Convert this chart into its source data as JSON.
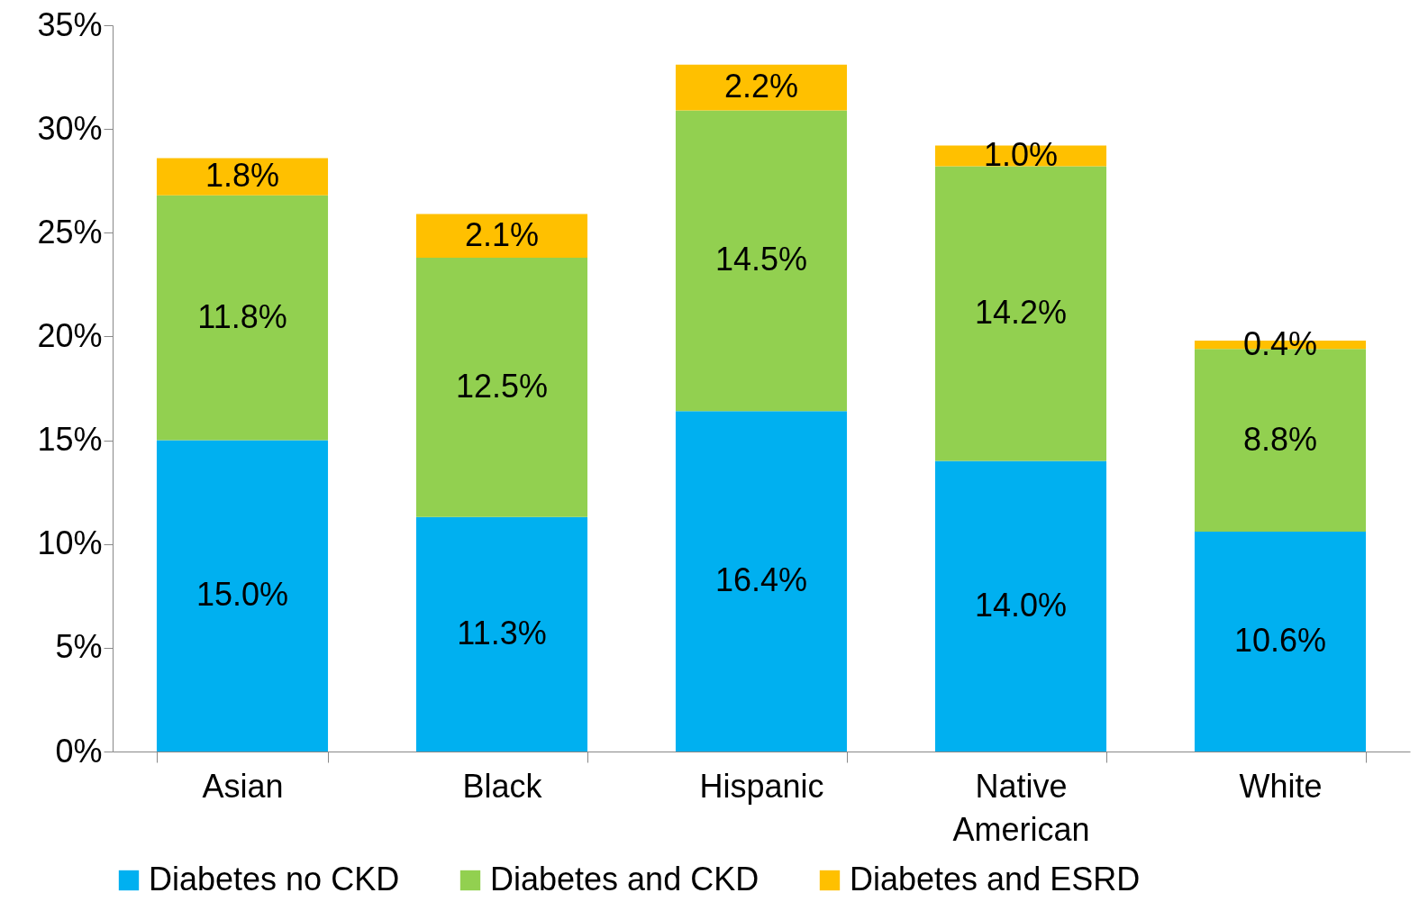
{
  "chart_data": {
    "type": "bar",
    "stacked": true,
    "categories": [
      "Asian",
      "Black",
      "Hispanic",
      "Native American",
      "White"
    ],
    "series": [
      {
        "name": "Diabetes no CKD",
        "color": "#00b0f0",
        "values": [
          15.0,
          11.3,
          16.4,
          14.0,
          10.6
        ],
        "value_labels": [
          "15.0%",
          "11.3%",
          "16.4%",
          "14.0%",
          "10.6%"
        ]
      },
      {
        "name": "Diabetes and CKD",
        "color": "#92d050",
        "values": [
          11.8,
          12.5,
          14.5,
          14.2,
          8.8
        ],
        "value_labels": [
          "11.8%",
          "12.5%",
          "14.5%",
          "14.2%",
          "8.8%"
        ]
      },
      {
        "name": "Diabetes and ESRD",
        "color": "#ffc000",
        "values": [
          1.8,
          2.1,
          2.2,
          1.0,
          0.4
        ],
        "value_labels": [
          "1.8%",
          "2.1%",
          "2.2%",
          "1.0%",
          "0.4%"
        ]
      }
    ],
    "ylim": [
      0,
      35
    ],
    "yticks": [
      {
        "value": 0,
        "label": "0%"
      },
      {
        "value": 5,
        "label": "5%"
      },
      {
        "value": 10,
        "label": "10%"
      },
      {
        "value": 15,
        "label": "15%"
      },
      {
        "value": 20,
        "label": "20%"
      },
      {
        "value": 25,
        "label": "25%"
      },
      {
        "value": 30,
        "label": "30%"
      },
      {
        "value": 35,
        "label": "35%"
      }
    ],
    "grid": false,
    "legend": "bottom"
  }
}
